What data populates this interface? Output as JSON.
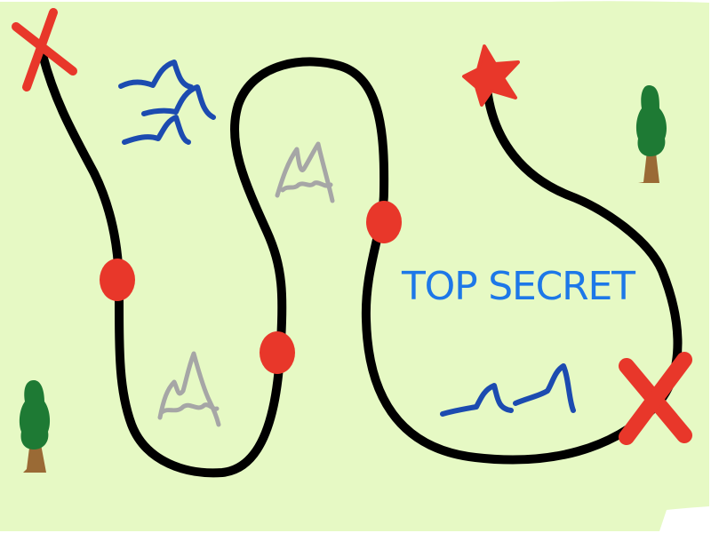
{
  "map": {
    "label": "TOP SECRET",
    "colors": {
      "paper": "#e6f9c4",
      "path": "#000000",
      "marker": "#e8372a",
      "label": "#1d78e8",
      "water": "#1c4bb0",
      "mountain": "#a6a6a6",
      "tree_foliage": "#1e7a34",
      "tree_trunk": "#9a6a35"
    },
    "icons": [
      "x-mark-icon",
      "star-icon",
      "waypoint-dot-icon",
      "water-waves-icon",
      "mountain-icon",
      "tree-icon"
    ]
  }
}
